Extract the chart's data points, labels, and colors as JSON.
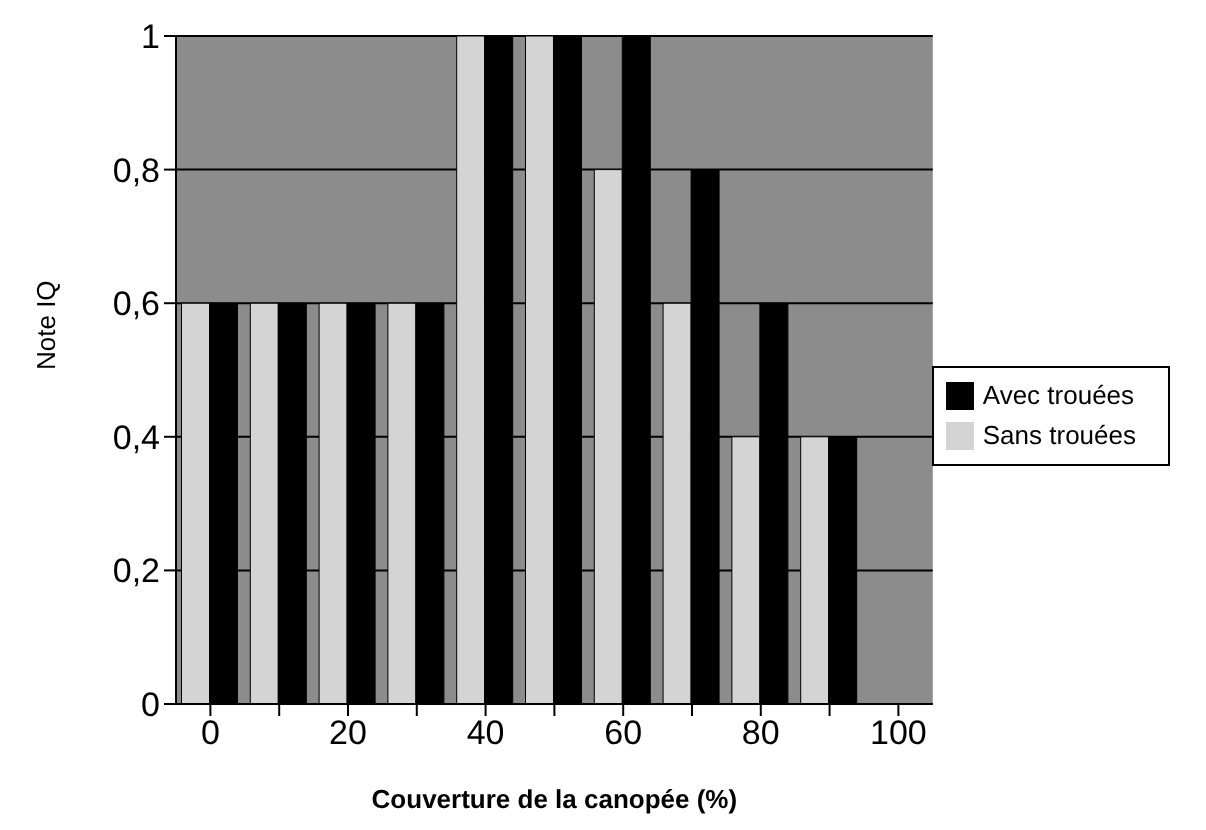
{
  "chart_data": {
    "type": "bar",
    "xlabel": "Couverture de la canopée (%)",
    "ylabel": "Note IQ",
    "categories": [
      "0",
      null,
      "20",
      null,
      "40",
      null,
      "60",
      null,
      "80",
      null,
      "100"
    ],
    "series": [
      {
        "name": "Sans trouées",
        "color": "#d4d4d4",
        "values": [
          0.6,
          0.6,
          0.6,
          0.6,
          1,
          1,
          0.8,
          0.6,
          0.4,
          0.4,
          0
        ]
      },
      {
        "name": "Avec trouées",
        "color": "#000000",
        "values": [
          0.6,
          0.6,
          0.6,
          0.6,
          1,
          1,
          1,
          0.8,
          0.6,
          0.4,
          0
        ]
      }
    ],
    "ylim": [
      0,
      1
    ],
    "yticks": [
      0,
      {
        "value": 0.2,
        "label": "0,2"
      },
      {
        "value": 0.4,
        "label": "0,4"
      },
      {
        "value": 0.6,
        "label": "0,6"
      },
      {
        "value": 0.8,
        "label": "0,8"
      },
      1
    ],
    "grid": "y",
    "legend": "right"
  }
}
